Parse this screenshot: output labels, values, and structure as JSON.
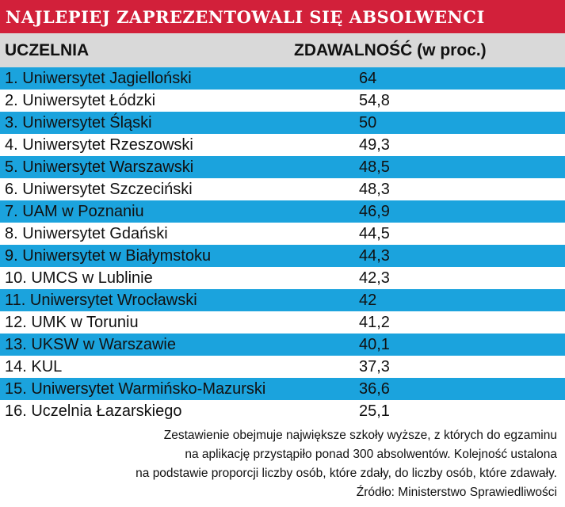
{
  "header": {
    "title": "NAJLEPIEJ ZAPREZENTOWALI SIĘ ABSOLWENCI"
  },
  "colors": {
    "title_bg": "#d2203a",
    "header_bg": "#d9d9d9",
    "stripe": "#1ba3dd"
  },
  "chart_data": {
    "type": "table",
    "title": "NAJLEPIEJ ZAPREZENTOWALI SIĘ ABSOLWENCI",
    "columns": [
      "UCZELNIA",
      "ZDAWALNOŚĆ (w proc.)"
    ],
    "rows": [
      {
        "name": "1. Uniwersytet Jagielloński",
        "value": "64"
      },
      {
        "name": "2. Uniwersytet Łódzki",
        "value": "54,8"
      },
      {
        "name": "3. Uniwersytet Śląski",
        "value": "50"
      },
      {
        "name": "4. Uniwersytet Rzeszowski",
        "value": "49,3"
      },
      {
        "name": "5. Uniwersytet Warszawski",
        "value": "48,5"
      },
      {
        "name": "6. Uniwersytet Szczeciński",
        "value": "48,3"
      },
      {
        "name": "7. UAM w Poznaniu",
        "value": "46,9"
      },
      {
        "name": "8. Uniwersytet Gdański",
        "value": "44,5"
      },
      {
        "name": "9. Uniwersytet w Białymstoku",
        "value": "44,3"
      },
      {
        "name": "10. UMCS w Lublinie",
        "value": "42,3"
      },
      {
        "name": "11. Uniwersytet Wrocławski",
        "value": "42"
      },
      {
        "name": "12. UMK w Toruniu",
        "value": "41,2"
      },
      {
        "name": "13. UKSW w Warszawie",
        "value": "40,1"
      },
      {
        "name": "14. KUL",
        "value": "37,3"
      },
      {
        "name": "15. Uniwersytet Warmińsko-Mazurski",
        "value": "36,6"
      },
      {
        "name": "16. Uczelnia Łazarskiego",
        "value": "25,1"
      }
    ]
  },
  "footnote": {
    "lines": [
      "Zestawienie obejmuje największe szkoły wyższe, z których do egzaminu",
      "na aplikację przystąpiło ponad 300 absolwentów. Kolejność ustalona",
      "na podstawie proporcji liczby osób, które zdały, do liczby osób, które zdawały.",
      "Źródło: Ministerstwo Sprawiedliwości"
    ]
  }
}
